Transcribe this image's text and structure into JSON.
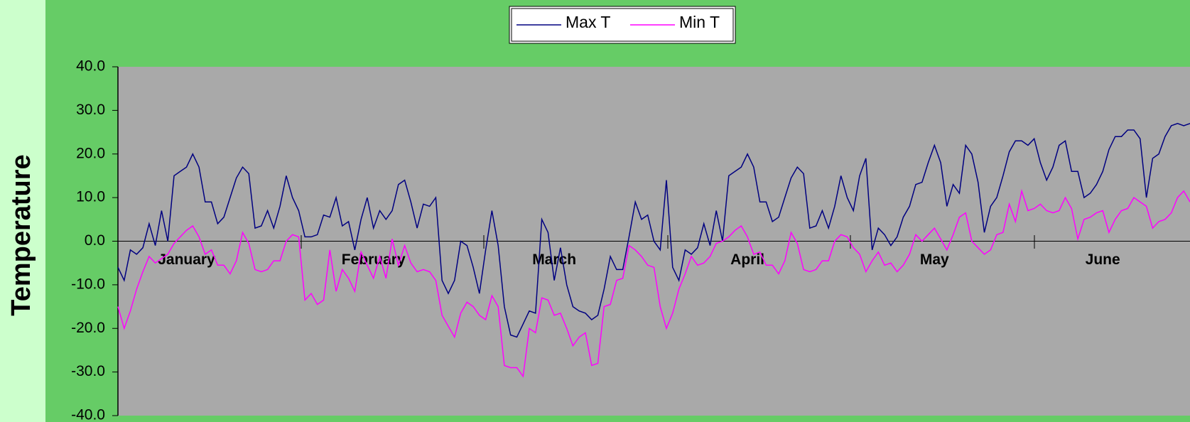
{
  "chart_data": {
    "type": "line",
    "y_label": "Temperature",
    "categories": [
      null,
      null,
      null,
      null,
      null,
      null,
      null,
      null,
      null,
      null,
      null,
      "January",
      null,
      null,
      null,
      null,
      null,
      null,
      null,
      null,
      null,
      null,
      null,
      null,
      null,
      null,
      null,
      null,
      null,
      null,
      null,
      null,
      null,
      null,
      null,
      null,
      null,
      null,
      null,
      null,
      null,
      "February",
      null,
      null,
      null,
      null,
      null,
      null,
      null,
      null,
      null,
      null,
      null,
      null,
      null,
      null,
      null,
      null,
      null,
      null,
      null,
      null,
      null,
      null,
      null,
      null,
      null,
      null,
      null,
      null,
      "March",
      null,
      null,
      null,
      null,
      null,
      null,
      null,
      null,
      null,
      null,
      null,
      null,
      null,
      null,
      null,
      null,
      null,
      null,
      null,
      null,
      null,
      null,
      null,
      null,
      null,
      null,
      null,
      null,
      null,
      null,
      "April",
      null,
      null,
      null,
      null,
      null,
      null,
      null,
      null,
      null,
      null,
      null,
      null,
      null,
      null,
      null,
      null,
      null,
      null,
      null,
      null,
      null,
      null,
      null,
      null,
      null,
      null,
      null,
      null,
      null,
      "May",
      null,
      null,
      null,
      null,
      null,
      null,
      null,
      null,
      null,
      null,
      null,
      null,
      null,
      null,
      null,
      null,
      null,
      null,
      null,
      null,
      null,
      null,
      null,
      null,
      null,
      null,
      "June",
      null,
      null,
      null,
      null,
      null,
      null,
      null,
      null,
      null,
      null,
      null,
      null,
      null,
      null
    ],
    "series": [
      {
        "name": "Max T",
        "color": "#000080",
        "values": [
          -6,
          -9,
          -2,
          -3,
          -1.5,
          4,
          -1,
          7,
          0,
          15,
          16,
          17,
          20,
          17,
          9,
          9,
          4,
          5.5,
          10,
          14.5,
          17,
          15.5,
          3,
          3.5,
          7,
          3,
          8,
          15,
          10,
          7,
          1,
          1,
          1.5,
          6,
          5.5,
          10,
          3.5,
          4.5,
          -2,
          5,
          10,
          3,
          7,
          5,
          7,
          13,
          14,
          9,
          3,
          8.5,
          8,
          10,
          -9,
          -12,
          -9,
          0,
          -1,
          -6,
          -12,
          -2,
          7,
          -1,
          -15,
          -21.5,
          -22,
          -19,
          -16,
          -16.5,
          5,
          2,
          -9,
          -1.5,
          -10,
          -15,
          -16,
          -16.5,
          -18,
          -17,
          -11,
          -3.5,
          -6.5,
          -6.5,
          1,
          9,
          5,
          6,
          0,
          -2,
          14,
          -6,
          -9,
          -2,
          -3,
          -1.5,
          4,
          -1,
          7,
          0,
          15,
          16,
          17,
          20,
          17,
          9,
          9,
          4.5,
          5.5,
          10,
          14.5,
          17,
          15.5,
          3,
          3.5,
          7,
          3,
          8,
          15,
          10,
          7,
          15,
          19,
          -2,
          3,
          1.5,
          -1,
          1,
          5.5,
          8,
          13,
          13.5,
          18,
          22,
          18,
          8,
          13,
          11,
          22,
          20,
          13.5,
          2,
          8,
          10,
          15,
          20.5,
          23,
          23,
          22,
          23.5,
          18,
          14,
          17,
          22,
          23,
          16,
          16,
          10,
          11,
          13,
          16,
          21,
          24,
          24,
          25.5,
          25.5,
          23.5,
          10,
          19,
          20,
          24,
          26.5,
          27,
          26.5,
          27
        ]
      },
      {
        "name": "Min T",
        "color": "#ff00ff",
        "values": [
          -15,
          -20,
          -16,
          -11,
          -7,
          -3.5,
          -5,
          -4,
          -3,
          -0.5,
          1,
          2.5,
          3.5,
          1,
          -3,
          -2,
          -5.5,
          -5.5,
          -7.5,
          -4.5,
          2,
          -0.5,
          -6.5,
          -7,
          -6.5,
          -4.5,
          -4.5,
          0,
          1.5,
          1,
          -13.5,
          -12,
          -14.5,
          -13.5,
          -2,
          -11.5,
          -6.5,
          -8.5,
          -11.5,
          -2.5,
          -5.5,
          -8.5,
          -3.5,
          -8.5,
          0.5,
          -5.5,
          -1,
          -5,
          -7,
          -6.5,
          -7,
          -9,
          -17,
          -19.5,
          -22,
          -16.5,
          -14,
          -15,
          -17,
          -18,
          -12.5,
          -15,
          -28.5,
          -29,
          -29,
          -31,
          -20,
          -21,
          -13,
          -13.5,
          -17,
          -16.5,
          -20,
          -24,
          -22,
          -21,
          -28.5,
          -28,
          -15,
          -14.5,
          -9,
          -8.5,
          -1,
          -2,
          -3.5,
          -5.5,
          -6,
          -15,
          -20,
          -16.5,
          -11,
          -7.5,
          -3.5,
          -5.5,
          -5,
          -3.5,
          -0.5,
          0,
          1,
          2.5,
          3.5,
          1,
          -3,
          -2.5,
          -5.5,
          -5.5,
          -7.5,
          -4.5,
          2,
          -0.5,
          -6.5,
          -7,
          -6.5,
          -4.5,
          -4.5,
          0,
          1.5,
          1,
          -1.5,
          -3,
          -7,
          -4.5,
          -2.5,
          -5.5,
          -5,
          -7,
          -5.5,
          -3,
          1.5,
          0,
          1.5,
          3,
          0.5,
          -2,
          1.5,
          5.5,
          6.5,
          0,
          -1.5,
          -3,
          -2,
          1.5,
          2,
          8.5,
          4.5,
          11.5,
          7,
          7.5,
          8.5,
          7,
          6.5,
          7,
          10,
          7.5,
          0.5,
          5,
          5.5,
          6.5,
          7,
          2,
          5,
          7,
          7.5,
          10,
          9,
          8,
          3,
          4.5,
          5,
          6.5,
          10,
          11.5,
          9
        ]
      }
    ],
    "ylim": [
      -40,
      40
    ],
    "yticks": [
      {
        "value": 40,
        "label": "40.0"
      },
      {
        "value": 30,
        "label": "30.0"
      },
      {
        "value": 20,
        "label": "20.0"
      },
      {
        "value": 10,
        "label": "10.0"
      },
      {
        "value": 0,
        "label": "0.0"
      },
      {
        "value": -10,
        "label": "-10.0"
      },
      {
        "value": -20,
        "label": "-20.0"
      },
      {
        "value": -30,
        "label": "-30.0"
      },
      {
        "value": -40,
        "label": "-40.0"
      }
    ],
    "legend": "top"
  }
}
